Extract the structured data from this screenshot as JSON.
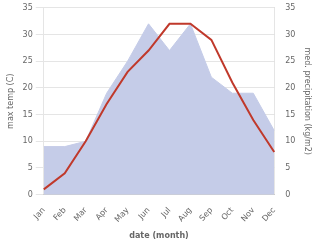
{
  "chart_data": {
    "type": "line",
    "xlabel": "date (month)",
    "ylabel": "max temp (C)",
    "y2label": "med. precipitation (kg/m2)",
    "categories": [
      "Jan",
      "Feb",
      "Mar",
      "Apr",
      "May",
      "Jun",
      "Jul",
      "Aug",
      "Sep",
      "Oct",
      "Nov",
      "Dec"
    ],
    "series": [
      {
        "type": "area",
        "color": "#c5cce8",
        "axis": "y2",
        "values": [
          9,
          9,
          10,
          19,
          25,
          32,
          27,
          32,
          22,
          19,
          19,
          12
        ]
      },
      {
        "type": "line",
        "color": "#c0392b",
        "values": [
          1,
          4,
          10,
          17,
          23,
          27,
          32,
          32,
          29,
          21,
          14,
          8
        ]
      }
    ],
    "ylim": [
      0,
      35
    ],
    "yticks": [
      0,
      5,
      10,
      15,
      20,
      25,
      30,
      35
    ],
    "y2lim": [
      0,
      35
    ],
    "y2ticks": [
      0,
      5,
      10,
      15,
      20,
      25,
      30,
      35
    ],
    "grid": true
  }
}
